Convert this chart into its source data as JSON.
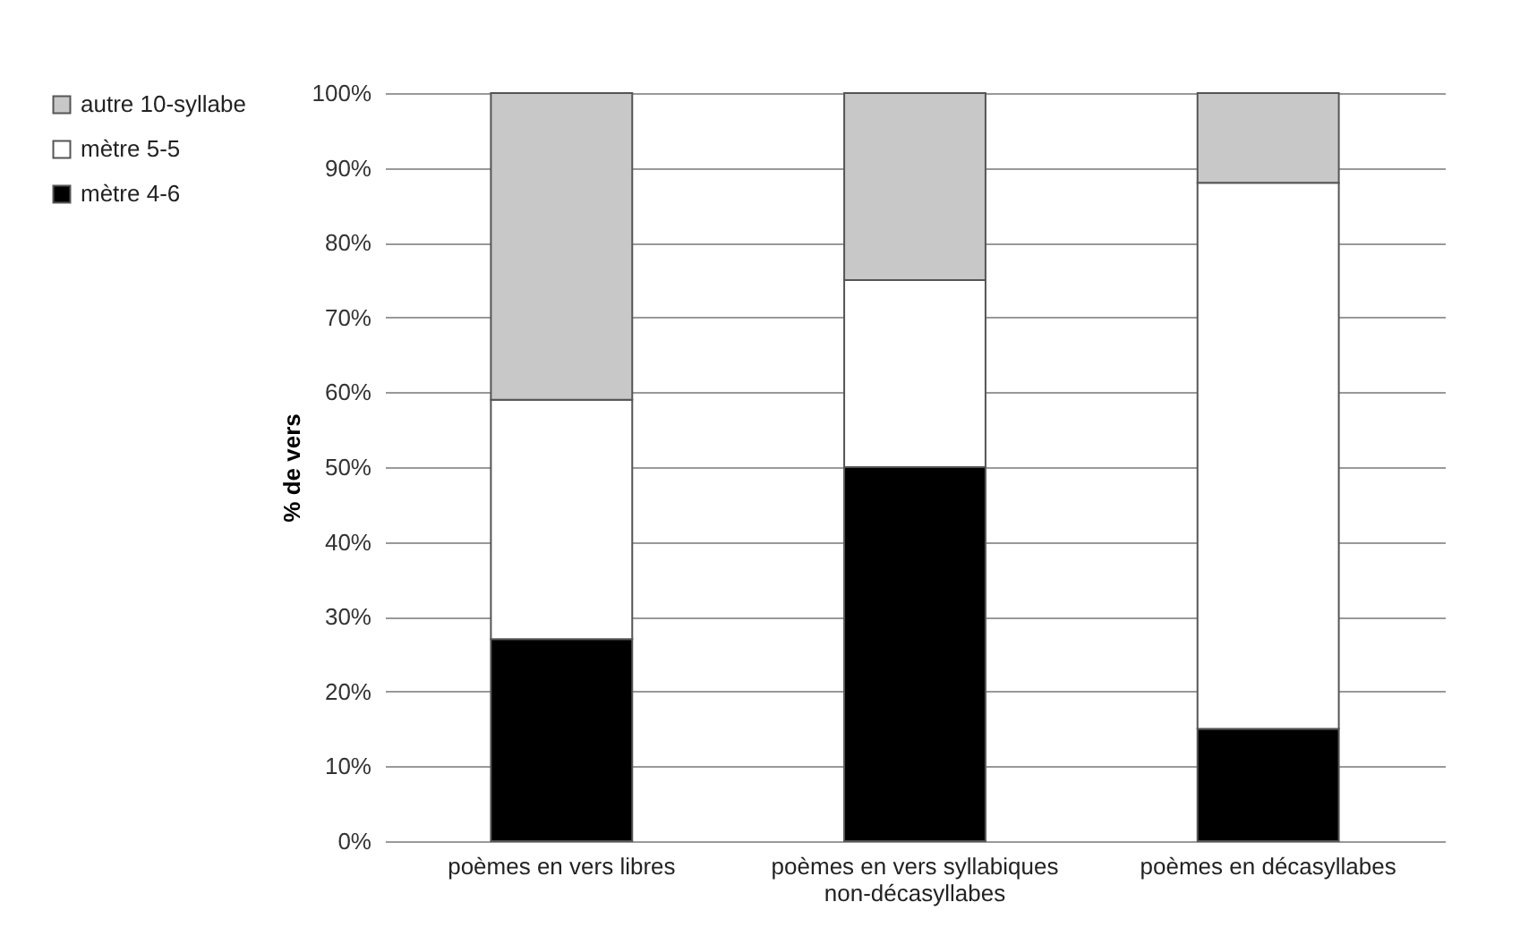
{
  "chart_data": {
    "type": "bar",
    "stacked": true,
    "ylabel": "% de vers",
    "categories": [
      "poèmes en vers libres",
      "poèmes en vers syllabiques non-décasyllabes",
      "poèmes en décasyllabes"
    ],
    "series": [
      {
        "name": "mètre 4-6",
        "color": "#000000",
        "values": [
          27,
          50,
          15
        ]
      },
      {
        "name": "mètre 5-5",
        "color": "#ffffff",
        "values": [
          32,
          25,
          73
        ]
      },
      {
        "name": "autre 10-syllabe",
        "color": "#c8c8c8",
        "values": [
          41,
          25,
          12
        ]
      }
    ],
    "ylim": [
      0,
      100
    ],
    "yticks": [
      {
        "value": 0,
        "label": "0%"
      },
      {
        "value": 10,
        "label": "10%"
      },
      {
        "value": 20,
        "label": "20%"
      },
      {
        "value": 30,
        "label": "30%"
      },
      {
        "value": 40,
        "label": "40%"
      },
      {
        "value": 50,
        "label": "50%"
      },
      {
        "value": 60,
        "label": "60%"
      },
      {
        "value": 70,
        "label": "70%"
      },
      {
        "value": 80,
        "label": "80%"
      },
      {
        "value": 90,
        "label": "90%"
      },
      {
        "value": 100,
        "label": "100%"
      }
    ],
    "grid": "y",
    "legend": "left"
  }
}
